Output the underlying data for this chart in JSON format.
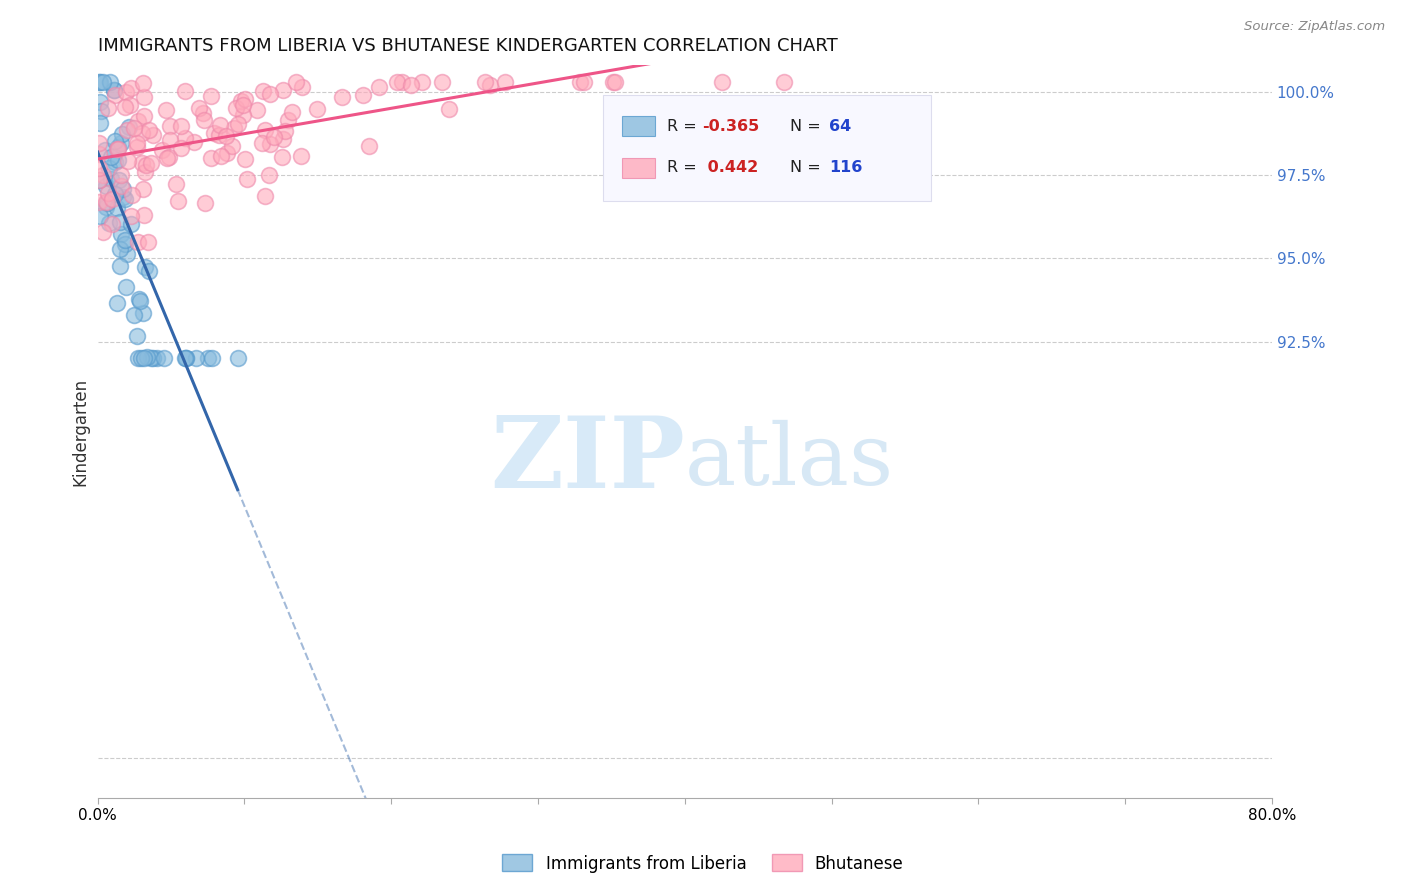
{
  "title": "IMMIGRANTS FROM LIBERIA VS BHUTANESE KINDERGARTEN CORRELATION CHART",
  "source": "Source: ZipAtlas.com",
  "ylabel": "Kindergarten",
  "blue_color": "#88bbdd",
  "blue_edge_color": "#5599cc",
  "blue_line_color": "#3366aa",
  "pink_color": "#ffaabb",
  "pink_edge_color": "#ee88aa",
  "pink_line_color": "#ee5588",
  "watermark_zip": "ZIP",
  "watermark_atlas": "atlas",
  "xlim": [
    0.0,
    0.8
  ],
  "ylim": [
    0.788,
    1.008
  ],
  "ytick_vals": [
    1.0,
    0.975,
    0.95,
    0.925
  ],
  "ytick_labels": [
    "100.0%",
    "97.5%",
    "95.0%",
    "92.5%"
  ],
  "yline_extra": 0.8,
  "legend_r_blue": "-0.365",
  "legend_n_blue": "64",
  "legend_r_pink": "0.442",
  "legend_n_pink": "116",
  "legend_text_color": "#2244cc",
  "legend_box_color": "#f8f8ff",
  "legend_box_edge": "#ddddee"
}
